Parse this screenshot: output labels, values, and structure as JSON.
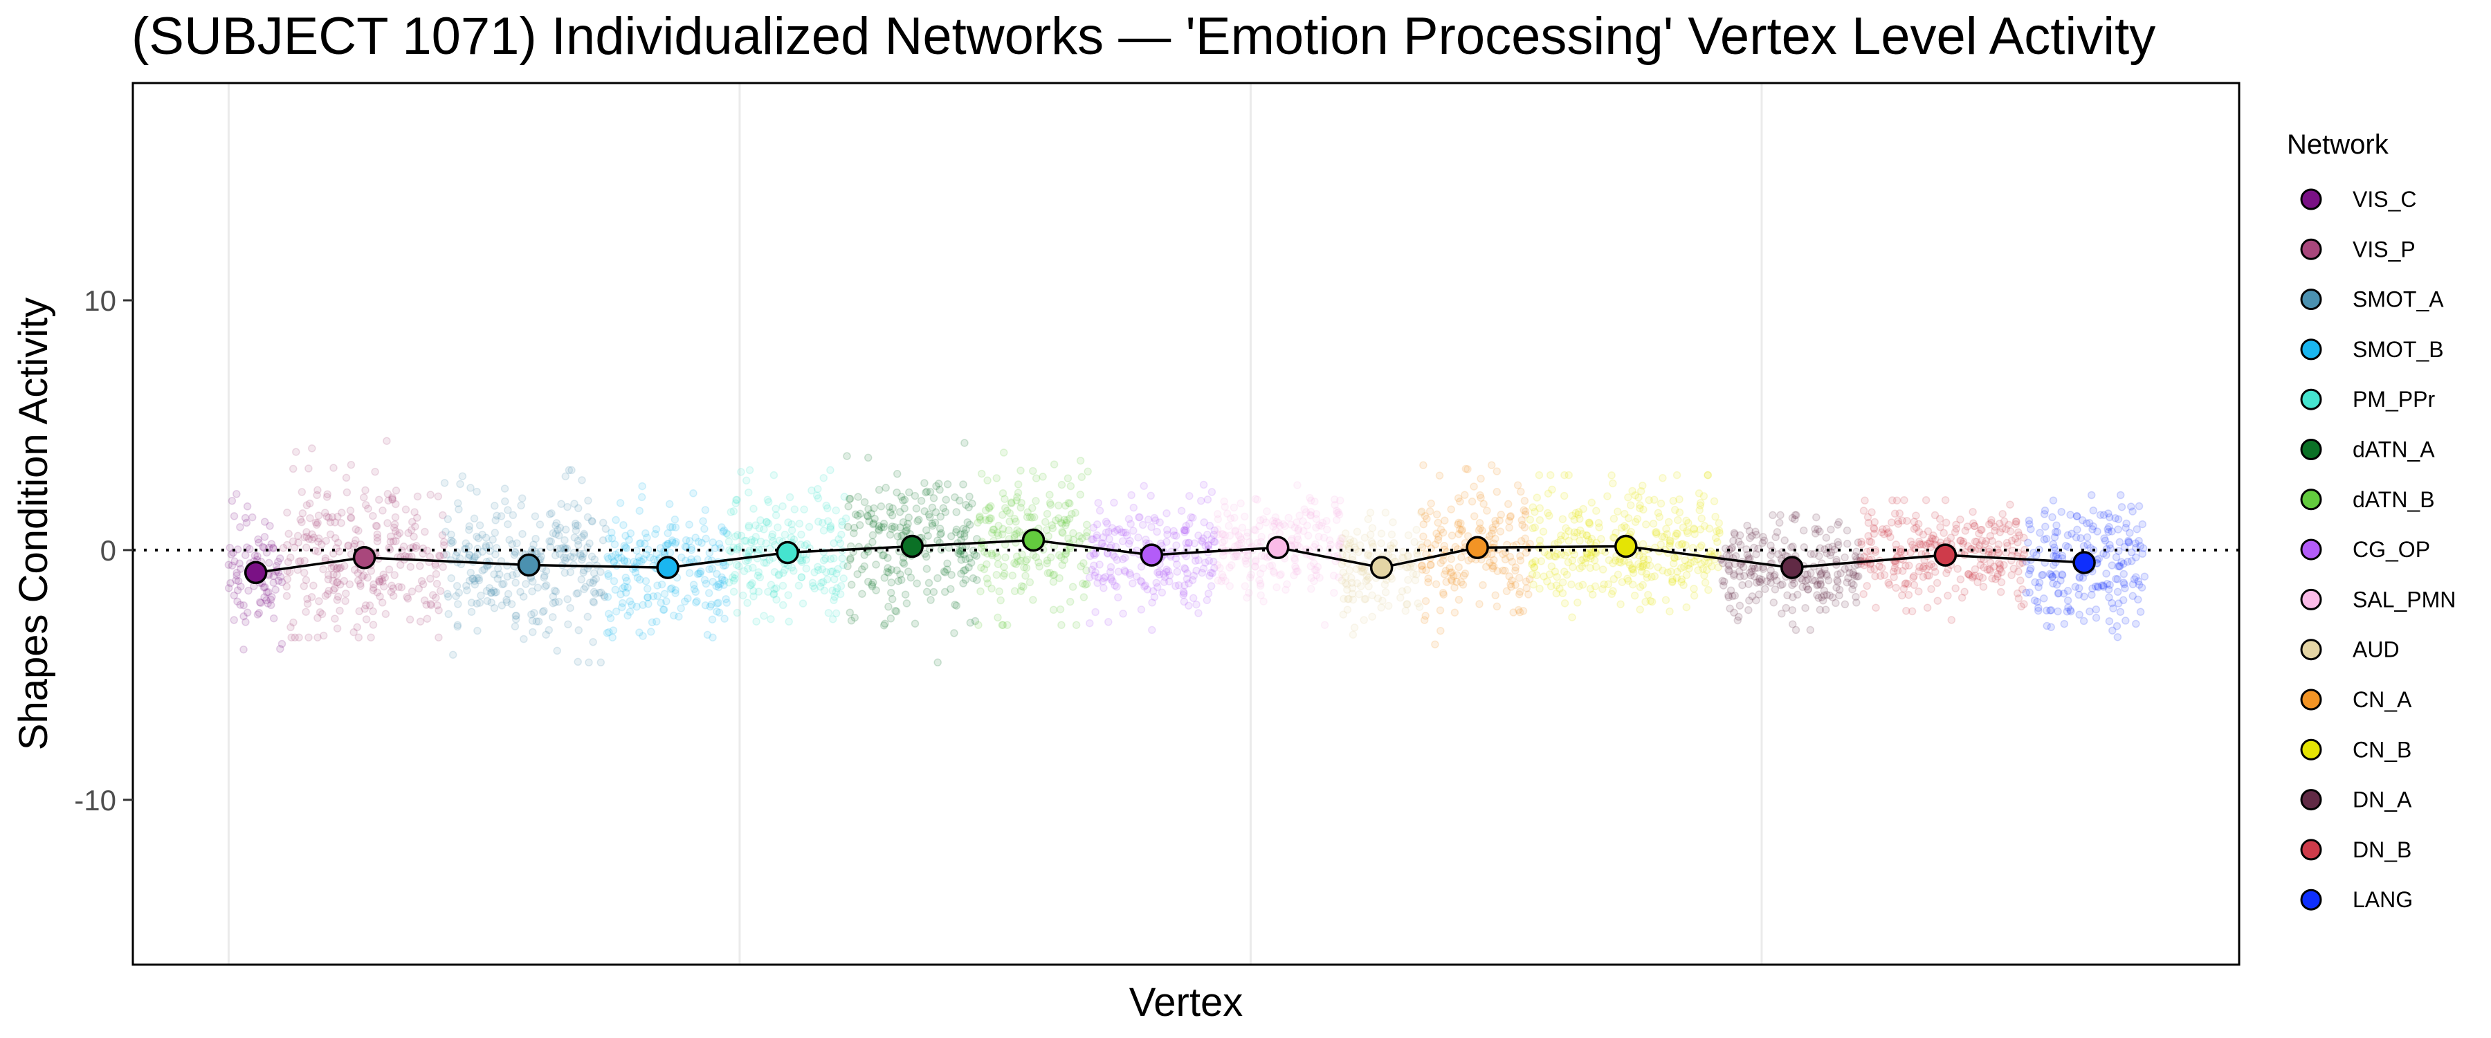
{
  "chart_data": {
    "type": "scatter",
    "title": "(SUBJECT 1071) Individualized Networks — 'Emotion Processing' Vertex Level Activity",
    "xlabel": "Vertex",
    "ylabel": "Shapes Condition Activity",
    "xlim": [
      -937,
      19672
    ],
    "ylim": [
      -16.6,
      18.7
    ],
    "x_gridlines": [
      0,
      5000,
      10000,
      15000
    ],
    "yticks": [
      -10,
      0,
      10
    ],
    "ytick_labels": [
      "-10",
      "0",
      "10"
    ],
    "reference_line_y": 0,
    "grid": true,
    "legend": {
      "title": "Network",
      "placement": "right"
    },
    "networks": [
      {
        "name": "VIS_C",
        "color": "#7a1185",
        "vertex_start": 0,
        "vertex_end": 531,
        "mean_vertex": 266,
        "mean": -0.9,
        "sd": 1.2,
        "min": -4.2,
        "max": 4.5
      },
      {
        "name": "VIS_P",
        "color": "#a9477c",
        "vertex_start": 531,
        "vertex_end": 2109,
        "mean_vertex": 1328,
        "mean": -0.3,
        "sd": 1.6,
        "min": -3.5,
        "max": 6.0
      },
      {
        "name": "SMOT_A",
        "color": "#4b91b0",
        "vertex_start": 2109,
        "vertex_end": 3703,
        "mean_vertex": 2938,
        "mean": -0.6,
        "sd": 1.5,
        "min": -4.5,
        "max": 3.2
      },
      {
        "name": "SMOT_B",
        "color": "#1ab6f0",
        "vertex_start": 3703,
        "vertex_end": 4875,
        "mean_vertex": 4297,
        "mean": -0.7,
        "sd": 1.3,
        "min": -3.5,
        "max": 4.0
      },
      {
        "name": "PM_PPr",
        "color": "#45e4cf",
        "vertex_start": 4875,
        "vertex_end": 6047,
        "mean_vertex": 5469,
        "mean": -0.1,
        "sd": 1.2,
        "min": -3.0,
        "max": 3.2
      },
      {
        "name": "dATN_A",
        "color": "#0b7126",
        "vertex_start": 6047,
        "vertex_end": 7328,
        "mean_vertex": 6688,
        "mean": 0.15,
        "sd": 1.5,
        "min": -4.5,
        "max": 4.8
      },
      {
        "name": "dATN_B",
        "color": "#63cb3e",
        "vertex_start": 7328,
        "vertex_end": 8422,
        "mean_vertex": 7875,
        "mean": 0.4,
        "sd": 1.4,
        "min": -3.0,
        "max": 5.2
      },
      {
        "name": "CG_OP",
        "color": "#b35cf8",
        "vertex_start": 8422,
        "vertex_end": 9672,
        "mean_vertex": 9031,
        "mean": -0.2,
        "sd": 1.1,
        "min": -3.2,
        "max": 2.8
      },
      {
        "name": "SAL_PMN",
        "color": "#fbbbe8",
        "vertex_start": 9672,
        "vertex_end": 10891,
        "mean_vertex": 10266,
        "mean": 0.1,
        "sd": 1.0,
        "min": -3.0,
        "max": 2.6
      },
      {
        "name": "AUD",
        "color": "#e4d5a5",
        "vertex_start": 10891,
        "vertex_end": 11672,
        "mean_vertex": 11281,
        "mean": -0.7,
        "sd": 1.1,
        "min": -4.0,
        "max": 1.5
      },
      {
        "name": "CN_A",
        "color": "#f29425",
        "vertex_start": 11672,
        "vertex_end": 12734,
        "mean_vertex": 12219,
        "mean": 0.1,
        "sd": 1.4,
        "min": -3.8,
        "max": 3.4
      },
      {
        "name": "CN_B",
        "color": "#e5e404",
        "vertex_start": 12734,
        "vertex_end": 14594,
        "mean_vertex": 13672,
        "mean": 0.15,
        "sd": 1.1,
        "min": -3.5,
        "max": 3.0
      },
      {
        "name": "DN_A",
        "color": "#612a45",
        "vertex_start": 14594,
        "vertex_end": 15969,
        "mean_vertex": 15297,
        "mean": -0.7,
        "sd": 1.0,
        "min": -3.2,
        "max": 1.4
      },
      {
        "name": "DN_B",
        "color": "#ce3b4a",
        "vertex_start": 15969,
        "vertex_end": 17578,
        "mean_vertex": 16797,
        "mean": -0.2,
        "sd": 0.9,
        "min": -3.0,
        "max": 2.0
      },
      {
        "name": "LANG",
        "color": "#0f2ffc",
        "vertex_start": 17578,
        "vertex_end": 18750,
        "mean_vertex": 18156,
        "mean": -0.5,
        "sd": 1.3,
        "min": -5.0,
        "max": 2.2
      }
    ]
  }
}
